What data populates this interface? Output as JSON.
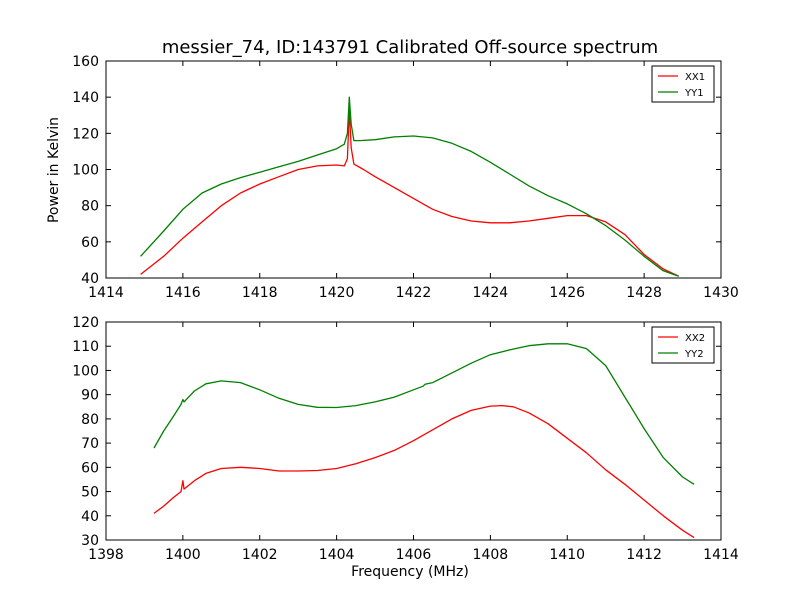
{
  "figure": {
    "title": "messier_74, ID:143791 Calibrated Off-source spectrum",
    "ylabel": "Power in Kelvin",
    "xlabel": "Frequency (MHz)"
  },
  "colors": {
    "xx": "#ff0000",
    "yy": "#008000"
  },
  "chart_data": [
    {
      "type": "line",
      "xlim": [
        1414,
        1430
      ],
      "ylim": [
        40,
        160
      ],
      "xticks": [
        "1414",
        "1416",
        "1418",
        "1420",
        "1422",
        "1424",
        "1426",
        "1428",
        "1430"
      ],
      "yticks": [
        "40",
        "60",
        "80",
        "100",
        "120",
        "140",
        "160"
      ],
      "legend_position": "top-right",
      "series": [
        {
          "name": "XX1",
          "color": "#ff0000",
          "x": [
            1414.9,
            1415.5,
            1416.0,
            1416.5,
            1417.0,
            1417.5,
            1418.0,
            1418.5,
            1419.0,
            1419.5,
            1420.0,
            1420.2,
            1420.28,
            1420.33,
            1420.38,
            1420.45,
            1420.7,
            1421.0,
            1421.5,
            1422.0,
            1422.5,
            1423.0,
            1423.5,
            1424.0,
            1424.5,
            1425.0,
            1425.5,
            1426.0,
            1426.5,
            1427.0,
            1427.5,
            1428.0,
            1428.5,
            1428.9
          ],
          "y": [
            42,
            52,
            62,
            71,
            80,
            87,
            92,
            96,
            100,
            102,
            102.5,
            102,
            106,
            133,
            112,
            103,
            100,
            96,
            90,
            84,
            78,
            74,
            71.5,
            70.5,
            70.5,
            71.5,
            73,
            74.5,
            74.5,
            71,
            64,
            53,
            45,
            41
          ]
        },
        {
          "name": "YY1",
          "color": "#008000",
          "x": [
            1414.9,
            1415.5,
            1416.0,
            1416.5,
            1417.0,
            1417.5,
            1418.0,
            1418.5,
            1419.0,
            1419.5,
            1420.0,
            1420.2,
            1420.28,
            1420.33,
            1420.38,
            1420.45,
            1420.6,
            1421.0,
            1421.5,
            1422.0,
            1422.5,
            1423.0,
            1423.5,
            1424.0,
            1424.5,
            1425.0,
            1425.5,
            1426.0,
            1426.5,
            1427.0,
            1427.5,
            1428.0,
            1428.5,
            1428.9
          ],
          "y": [
            52,
            66,
            78,
            87,
            92,
            95.5,
            98.5,
            101.5,
            104.5,
            108,
            111.5,
            114,
            120,
            140,
            125,
            116,
            116,
            116.5,
            118,
            118.5,
            117.5,
            114.5,
            110,
            104,
            97.5,
            91,
            85.5,
            81,
            75.5,
            69,
            61,
            52,
            44,
            41
          ]
        }
      ]
    },
    {
      "type": "line",
      "xlim": [
        1398,
        1414
      ],
      "ylim": [
        30,
        120
      ],
      "xticks": [
        "1398",
        "1400",
        "1402",
        "1404",
        "1406",
        "1408",
        "1410",
        "1412",
        "1414"
      ],
      "yticks": [
        "30",
        "40",
        "50",
        "60",
        "70",
        "80",
        "90",
        "100",
        "110",
        "120"
      ],
      "legend_position": "top-right",
      "series": [
        {
          "name": "XX2",
          "color": "#ff0000",
          "x": [
            1399.25,
            1399.5,
            1399.75,
            1399.95,
            1400.0,
            1400.03,
            1400.3,
            1400.6,
            1401.0,
            1401.5,
            1402.0,
            1402.5,
            1403.0,
            1403.5,
            1404.0,
            1404.5,
            1405.0,
            1405.5,
            1406.0,
            1406.5,
            1407.0,
            1407.5,
            1408.0,
            1408.3,
            1408.6,
            1409.0,
            1409.5,
            1410.0,
            1410.5,
            1411.0,
            1411.5,
            1412.0,
            1412.5,
            1413.0,
            1413.3
          ],
          "y": [
            41,
            44,
            47.5,
            50,
            54.5,
            51,
            54.5,
            57.5,
            59.5,
            60,
            59.5,
            58.5,
            58.5,
            58.7,
            59.5,
            61.5,
            64,
            67,
            71,
            75.5,
            80,
            83.5,
            85.3,
            85.5,
            85,
            82.5,
            78,
            72,
            66,
            59,
            53,
            46.5,
            40,
            34,
            31
          ]
        },
        {
          "name": "YY2",
          "color": "#008000",
          "x": [
            1399.25,
            1399.5,
            1399.75,
            1399.95,
            1400.0,
            1400.03,
            1400.3,
            1400.6,
            1401.0,
            1401.5,
            1402.0,
            1402.5,
            1403.0,
            1403.5,
            1404.0,
            1404.5,
            1405.0,
            1405.5,
            1406.0,
            1406.25,
            1406.3,
            1406.5,
            1407.0,
            1407.5,
            1408.0,
            1408.5,
            1409.0,
            1409.5,
            1410.0,
            1410.5,
            1411.0,
            1411.5,
            1412.0,
            1412.5,
            1413.0,
            1413.3
          ],
          "y": [
            68,
            75,
            81,
            86,
            88,
            87,
            91.5,
            94.5,
            95.7,
            95,
            92,
            88.5,
            86,
            84.8,
            84.7,
            85.5,
            87,
            89,
            92,
            93.5,
            94.3,
            95,
            99,
            103,
            106.5,
            108.5,
            110.2,
            111,
            111,
            109,
            102,
            89,
            76,
            64,
            56,
            53
          ]
        }
      ]
    }
  ]
}
